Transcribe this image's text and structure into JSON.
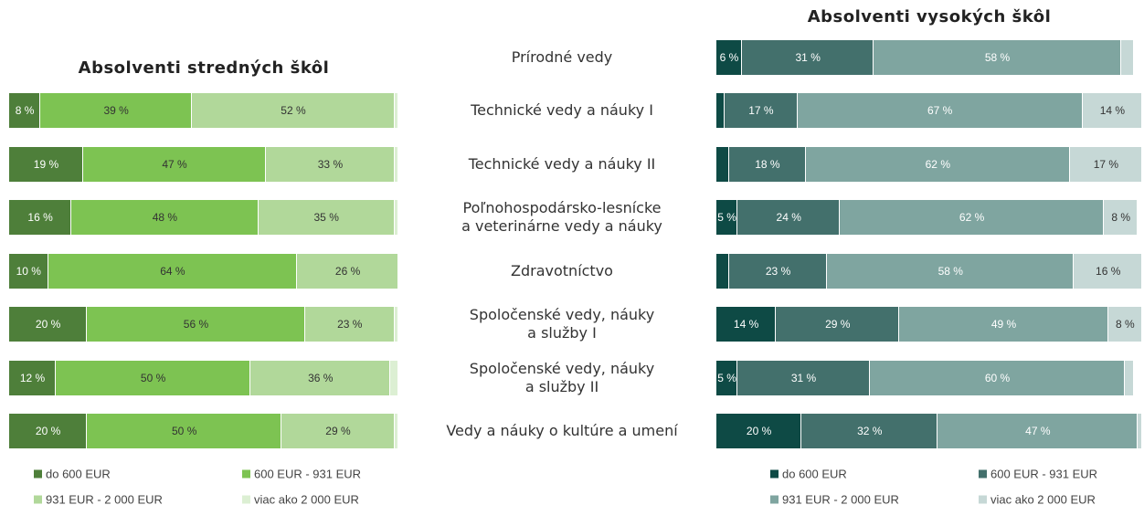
{
  "chart_data": [
    {
      "type": "stacked-bar-horizontal",
      "title": "Absolventi stredných škôl",
      "categories": [
        "Prírodné vedy",
        "Technické vedy a náuky I",
        "Technické vedy a náuky II",
        "Poľnohospodársko-lesnícke\na veterinárne vedy a náuky",
        "Zdravotníctvo",
        "Spoločenské vedy, náuky\na služby I",
        "Spoločenské vedy, náuky\na služby II",
        "Vedy a náuky o kultúre a umení"
      ],
      "xlim": [
        0,
        100
      ],
      "series": [
        {
          "name": "do 600 EUR",
          "color": "#4e7f3a",
          "values": [
            null,
            8,
            19,
            16,
            10,
            20,
            12,
            20
          ],
          "value_labels": [
            null,
            "8 %",
            "19 %",
            "16 %",
            "10 %",
            "20 %",
            "12 %",
            "20 %"
          ]
        },
        {
          "name": "600 EUR - 931 EUR",
          "color": "#7dc352",
          "values": [
            null,
            39,
            47,
            48,
            64,
            56,
            50,
            50
          ],
          "value_labels": [
            null,
            "39 %",
            "47 %",
            "48 %",
            "64 %",
            "56 %",
            "50 %",
            "50 %"
          ]
        },
        {
          "name": "931 EUR - 2 000 EUR",
          "color": "#b1d89a",
          "values": [
            null,
            52,
            33,
            35,
            26,
            23,
            36,
            29
          ],
          "value_labels": [
            null,
            "52 %",
            "33 %",
            "35 %",
            "26 %",
            "23 %",
            "36 %",
            "29 %"
          ]
        },
        {
          "name": "viac ako 2 000 EUR",
          "color": "#dcefd3",
          "values": [
            null,
            1,
            1,
            1,
            0,
            1,
            2,
            1
          ],
          "value_labels": [
            null,
            null,
            null,
            null,
            null,
            null,
            null,
            null
          ]
        }
      ]
    },
    {
      "type": "stacked-bar-horizontal",
      "title": "Absolventi vysokých škôl",
      "xlim": [
        0,
        100
      ],
      "series": [
        {
          "name": "do 600 EUR",
          "color": "#0e4a45",
          "values": [
            6,
            2,
            3,
            5,
            3,
            14,
            5,
            20
          ],
          "value_labels": [
            "6 %",
            null,
            null,
            "5 %",
            null,
            "14 %",
            "5 %",
            "20 %"
          ]
        },
        {
          "name": "600 EUR - 931 EUR",
          "color": "#43706c",
          "values": [
            31,
            17,
            18,
            24,
            23,
            29,
            31,
            32
          ],
          "value_labels": [
            "31 %",
            "17 %",
            "18 %",
            "24 %",
            "23 %",
            "29 %",
            "31 %",
            "32 %"
          ]
        },
        {
          "name": "931 EUR - 2 000 EUR",
          "color": "#7fa5a0",
          "values": [
            58,
            67,
            62,
            62,
            58,
            49,
            60,
            47
          ],
          "value_labels": [
            "58 %",
            "67 %",
            "62 %",
            "62 %",
            "58 %",
            "49 %",
            "60 %",
            "47 %"
          ]
        },
        {
          "name": "viac ako 2 000 EUR",
          "color": "#c6d8d6",
          "values": [
            3,
            14,
            17,
            8,
            16,
            8,
            2,
            1
          ],
          "value_labels": [
            null,
            "14 %",
            "17 %",
            "8 %",
            "16 %",
            "8 %",
            null,
            null
          ]
        }
      ]
    }
  ]
}
